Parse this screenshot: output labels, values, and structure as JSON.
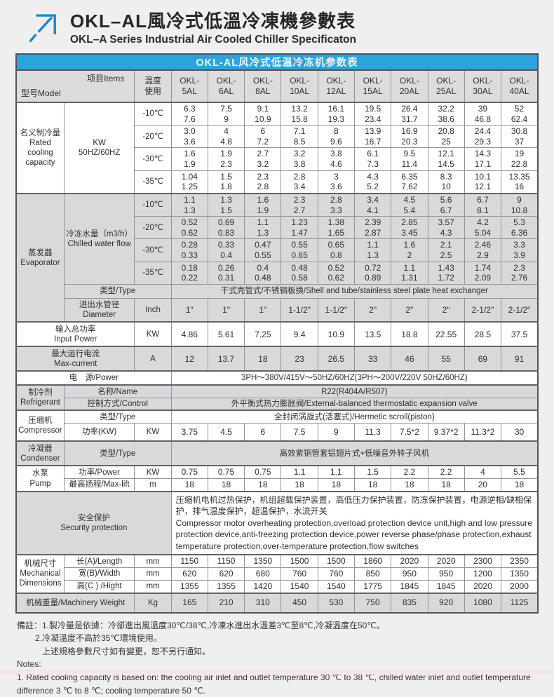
{
  "page": {
    "title_zh": "OKL–AL風冷式低溫冷凍機參數表",
    "title_en": "OKL–A Series Industrial Air Cooled Chiller Specificaton"
  },
  "banner": "OKL-AL风冷式低温冷冻机参数表",
  "header": {
    "model_label": "型号Model",
    "items_label": "项目Items",
    "temp_label": "温度\n使用",
    "models": [
      "OKL-\n5AL",
      "OKL-\n6AL",
      "OKL-\n8AL",
      "OKL-\n10AL",
      "OKL-\n12AL",
      "OKL-\n15AL",
      "OKL-\n20AL",
      "OKL-\n25AL",
      "OKL-\n30AL",
      "OKL-\n40AL"
    ]
  },
  "rated": {
    "label": "名义制冷量\nRated\ncooling\ncapacity",
    "sub": "KW\n50HZ/60HZ",
    "temps": [
      "-10℃",
      "-20℃",
      "-30℃",
      "-35℃"
    ],
    "rows": [
      [
        "6.3\n7.6",
        "7.5\n9",
        "9.1\n10.9",
        "13.2\n15.8",
        "16.1\n19.3",
        "19.5\n23.4",
        "26.4\n31.7",
        "32.2\n38.6",
        "39\n46.8",
        "52\n62.4"
      ],
      [
        "3.0\n3.6",
        "4\n4.8",
        "6\n7.2",
        "7.1\n8.5",
        "8\n9.6",
        "13.9\n16.7",
        "16.9\n20.3",
        "20.8\n25",
        "24.4\n29.3",
        "30.8\n37"
      ],
      [
        "1.6\n1.9",
        "1.9\n2.3",
        "2.7\n3.2",
        "3.2\n3.8",
        "3.8\n4.6",
        "6.1\n7.3",
        "9.5\n11.4",
        "12.1\n14.5",
        "14.3\n17.1",
        "19\n22.8"
      ],
      [
        "1.04\n1.25",
        "1.5\n1.8",
        "2.3\n2.8",
        "2.8\n3.4",
        "3\n3.6",
        "4.3\n5.2",
        "6.35\n7.62",
        "8.3\n10",
        "10.1\n12.1",
        "13.35\n16"
      ]
    ]
  },
  "evaporator": {
    "label": "蒸发器\nEvaporator",
    "flow_label": "冷冻水量（m3/h）\nChilled water flow",
    "temps": [
      "-10℃",
      "-20℃",
      "-30℃",
      "-35℃"
    ],
    "rows": [
      [
        "1.1\n1.3",
        "1.3\n1.5",
        "1.6\n1.9",
        "2.3\n2.7",
        "2.8\n3.3",
        "3.4\n4.1",
        "4.5\n5.4",
        "5.6\n6.7",
        "6.7\n8.1",
        "9\n10.8"
      ],
      [
        "0.52\n0.62",
        "0.69\n0.83",
        "1.1\n1.3",
        "1.23\n1.47",
        "1.38\n1.65",
        "2.39\n2.87",
        "2.85\n3.45",
        "3.57\n4.3",
        "4.2\n5.04",
        "5.3\n6.36"
      ],
      [
        "0.28\n0.33",
        "0.33\n0.4",
        "0.47\n0.55",
        "0.55\n0.65",
        "0.65\n0.8",
        "1.1\n1.3",
        "1.6\n2",
        "2.1\n2.5",
        "2.46\n2.9",
        "3.3\n3.9"
      ],
      [
        "0.18\n0.22",
        "0.26\n0.31",
        "0.4\n0.48",
        "0.48\n0.58",
        "0.52\n0.62",
        "0.72\n0.89",
        "1.1\n1.31",
        "1.43\n1.72",
        "1.74\n2.09",
        "2.3\n2.76"
      ]
    ],
    "type_label": "类型/Type",
    "type_value": "干式壳管式/不锈钢板换/Shell and tube/stainless steel plate heat exchanger",
    "diameter_label": "进出水管径\nDiameter",
    "diameter_unit": "Inch",
    "diameters": [
      "1\"",
      "1\"",
      "1\"",
      "1-1/2\"",
      "1-1/2\"",
      "2\"",
      "2\"",
      "2\"",
      "2-1/2\"",
      "2-1/2\""
    ]
  },
  "input_power": {
    "label": "输入总功率\nInput Power",
    "unit": "KW",
    "values": [
      "4.86",
      "5.61",
      "7.25",
      "9.4",
      "10.9",
      "13.5",
      "18.8",
      "22.55",
      "28.5",
      "37.5"
    ]
  },
  "max_current": {
    "label": "最大运行电流\nMax-current",
    "unit": "A",
    "values": [
      "12",
      "13.7",
      "18",
      "23",
      "26.5",
      "33",
      "46",
      "55",
      "69",
      "91"
    ]
  },
  "power_supply": {
    "label": "电　源/Power",
    "value": "3PH～380V/415V～50HZ/60HZ(3PH～200V/220V  50HZ/60HZ)"
  },
  "refrigerant": {
    "label": "制冷剂\nRefrigerant",
    "name_label": "名称/Name",
    "name_value": "R22(R404A/R507)",
    "control_label": "控制方式/Control",
    "control_value": "外平衡式热力膨胀阀/External-balanced thermostatic expansion valve"
  },
  "compressor": {
    "label": "压缩机\nCompressor",
    "type_label": "类型/Type",
    "type_value": "全封闭涡旋式(活塞式)/Hermetic scroll(piston)",
    "power_label": "功率(KW)",
    "power_unit": "KW",
    "power_values": [
      "3.75",
      "4.5",
      "6",
      "7.5",
      "9",
      "11.3",
      "7.5*2",
      "9.37*2",
      "11.3*2",
      "30"
    ]
  },
  "condenser": {
    "label": "冷凝器\nCondenser",
    "type_label": "类型/Type",
    "type_value": "高效紫铜管套铝翅片式+低噪音外转子风机"
  },
  "pump": {
    "label": "水泵\nPump",
    "power_label": "功率/Power",
    "power_unit": "KW",
    "power_values": [
      "0.75",
      "0.75",
      "0.75",
      "1.1",
      "1.1",
      "1.5",
      "2.2",
      "2.2",
      "4",
      "5.5"
    ],
    "lift_label": "最高扬程/Max-lift",
    "lift_unit": "m",
    "lift_values": [
      "18",
      "18",
      "18",
      "18",
      "18",
      "18",
      "18",
      "18",
      "20",
      "18"
    ]
  },
  "security": {
    "label": "安全保护\nSecurity protection",
    "text": "压缩机电机过热保护，机组超载保护装置，高低压力保护装置，防冻保护装置，电源逆相/缺相保护，排气温度保护，超温保护，水流开关\n Compressor motor overheating protection,overload protection device unit,high and low pressure protection device,anti-freezing protection device,power reverse phase/phase protection,exhaust temperature protection,over-temperature protection,flow switches"
  },
  "dimensions": {
    "label": "机械尺寸\nMechanical\nDimensions",
    "rows": [
      {
        "label": "长(A)/Length",
        "unit": "mm",
        "values": [
          "1150",
          "1150",
          "1350",
          "1500",
          "1500",
          "1860",
          "2020",
          "2020",
          "2300",
          "2350"
        ]
      },
      {
        "label": "宽(B)/Width",
        "unit": "mm",
        "values": [
          "620",
          "620",
          "680",
          "760",
          "760",
          "850",
          "950",
          "950",
          "1200",
          "1350"
        ]
      },
      {
        "label": "高(C ) /Hight",
        "unit": "mm",
        "values": [
          "1355",
          "1355",
          "1420",
          "1540",
          "1540",
          "1775",
          "1845",
          "1845",
          "2020",
          "2000"
        ]
      }
    ]
  },
  "weight": {
    "label": "机械重量/Machinery Weight",
    "unit": "Kg",
    "values": [
      "165",
      "210",
      "310",
      "450",
      "530",
      "750",
      "835",
      "920",
      "1080",
      "1125"
    ]
  },
  "notes": {
    "lines": [
      {
        "text": "備註：1.製冷量是依據：冷卻進出風溫度30℃/38℃,冷凍水進出水溫差3℃至8℃,冷凝溫度在50℃。",
        "indent": 0
      },
      {
        "text": "2.冷凝溫度不高於35℃環境使用。",
        "indent": 1
      },
      {
        "text": "上述規格參數尺寸如有變更，恕不另行通知。",
        "indent": 2
      },
      {
        "text": "Notes:",
        "indent": 0
      },
      {
        "text": "1. Rated cooling capacity is based on: the cooling air inlet and outlet temperature 30 ℃ to 38 ℃, chilled water inlet and outlet temperature difference 3 ℃ to 8 ℃; cooling temperature 50 ℃.",
        "indent": 0
      }
    ]
  },
  "colors": {
    "accent_blue": "#2ba4db",
    "row_gray": "#d9d9d9",
    "border": "#9393a0"
  }
}
